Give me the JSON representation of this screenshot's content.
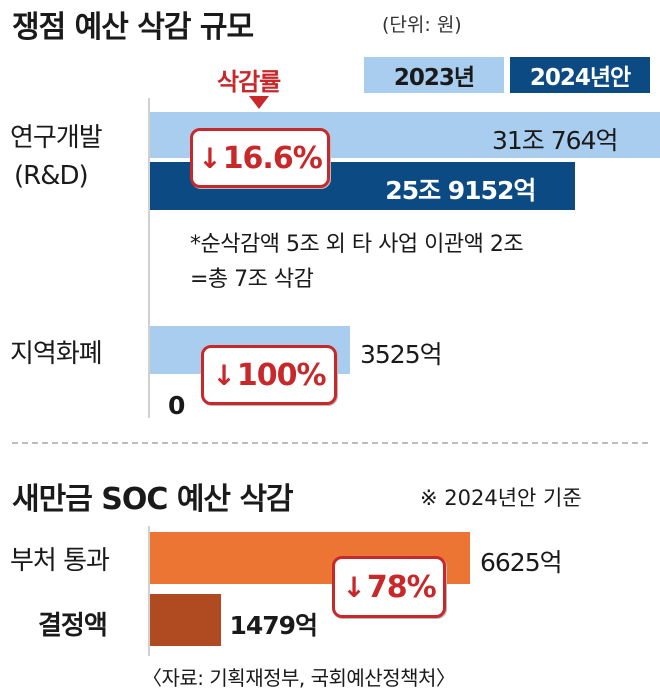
{
  "chart_data": [
    {
      "type": "bar",
      "title": "쟁점 예산 삭감 규모",
      "unit": "(단위: 원)",
      "legend": [
        "2023년",
        "2024년안"
      ],
      "rate_label": "삭감률",
      "categories": [
        {
          "name_line1": "연구개발",
          "name_line2": "(R&D)",
          "value_2023": 31.0764,
          "value_2024": 25.9152,
          "label_2023": "31조 764억",
          "label_2024": "25조 9152억",
          "cut_rate": "16.6%"
        },
        {
          "name_line1": "지역화폐",
          "name_line2": "",
          "value_2023": 0.3525,
          "value_2024": 0,
          "label_2023": "3525억",
          "label_2024": "0",
          "cut_rate": "100%"
        }
      ],
      "note_line1": "*순삭감액 5조 외 타 사업 이관액 2조",
      "note_line2": "=총 7조 삭감",
      "colors": {
        "y2023": "#a8cdef",
        "y2024": "#0b4a83",
        "badge": "#c8282a"
      }
    },
    {
      "type": "bar",
      "title": "새만금 SOC 예산 삭감",
      "subtitle": "※ 2024년안 기준",
      "categories": [
        "부처 통과",
        "결정액"
      ],
      "values": [
        6625,
        1479
      ],
      "value_labels": [
        "6625억",
        "1479억"
      ],
      "cut_rate": "78%",
      "colors": {
        "passed": "#ed7534",
        "decided": "#b04a20",
        "badge": "#c8282a"
      }
    }
  ],
  "source": "〈자료: 기획재정부, 국회예산정책처〉",
  "arrow_glyph": "↓"
}
